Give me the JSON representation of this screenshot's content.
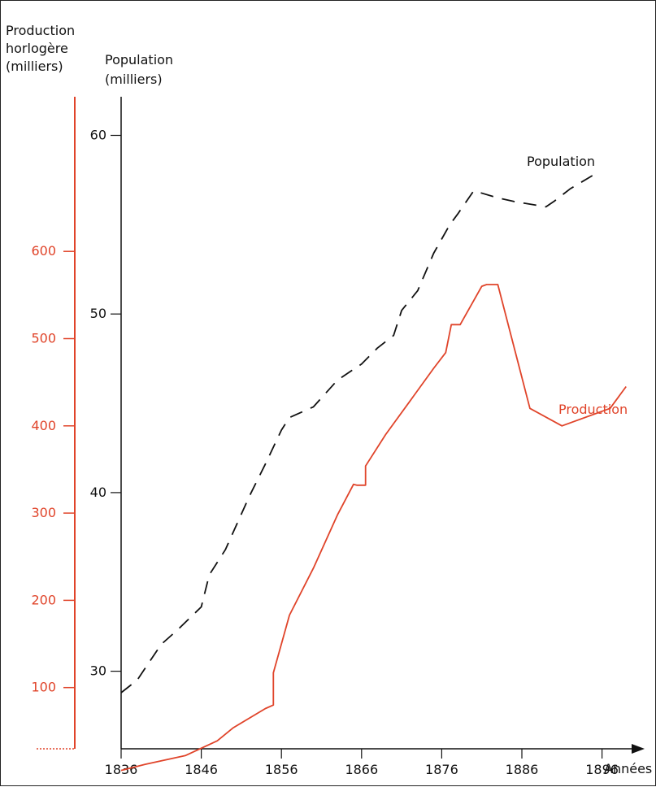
{
  "colors": {
    "production": "#e0442a",
    "population": "#111111",
    "axis": "#111111"
  },
  "axes": {
    "left_title": [
      "Production",
      "horlogère",
      "(milliers)"
    ],
    "right_title": [
      "Population",
      "(milliers)"
    ],
    "x_label": "Années"
  },
  "chart_data": {
    "type": "line",
    "x_label": "Années",
    "x_ticks": [
      1836,
      1846,
      1856,
      1866,
      1876,
      1886,
      1896
    ],
    "xlim": [
      1836,
      1902
    ],
    "y_left": {
      "label": "Production horlogère (milliers)",
      "ticks": [
        100,
        200,
        300,
        400,
        500,
        600
      ],
      "range": [
        0,
        700
      ]
    },
    "y_right": {
      "label": "Population (milliers)",
      "ticks": [
        30,
        40,
        50,
        60
      ],
      "range": [
        27,
        63
      ]
    },
    "series": [
      {
        "name": "Population",
        "axis": "right",
        "style": "dashed",
        "points": [
          [
            1836,
            28.8
          ],
          [
            1838,
            29.5
          ],
          [
            1841,
            31.5
          ],
          [
            1843,
            32.3
          ],
          [
            1846,
            33.6
          ],
          [
            1847,
            35.4
          ],
          [
            1849,
            36.8
          ],
          [
            1852,
            39.8
          ],
          [
            1854,
            41.6
          ],
          [
            1856,
            43.5
          ],
          [
            1857,
            44.2
          ],
          [
            1860,
            44.8
          ],
          [
            1863,
            46.3
          ],
          [
            1866,
            47.2
          ],
          [
            1868,
            48.1
          ],
          [
            1870,
            48.8
          ],
          [
            1871,
            50.2
          ],
          [
            1873,
            51.3
          ],
          [
            1875,
            53.4
          ],
          [
            1877,
            55.0
          ],
          [
            1878,
            55.6
          ],
          [
            1880,
            56.9
          ],
          [
            1883,
            56.5
          ],
          [
            1885,
            56.3
          ],
          [
            1889,
            56.0
          ],
          [
            1890,
            56.3
          ],
          [
            1892,
            57.0
          ],
          [
            1895,
            57.8
          ]
        ]
      },
      {
        "name": "Production",
        "axis": "left",
        "style": "solid",
        "points": [
          [
            1836,
            5
          ],
          [
            1839,
            12
          ],
          [
            1844,
            22
          ],
          [
            1848,
            39
          ],
          [
            1850,
            54
          ],
          [
            1854,
            76
          ],
          [
            1855,
            80
          ],
          [
            1855,
            117
          ],
          [
            1857,
            183
          ],
          [
            1860,
            237
          ],
          [
            1863,
            298
          ],
          [
            1865,
            333
          ],
          [
            1865.4,
            332
          ],
          [
            1866.5,
            332
          ],
          [
            1866.5,
            354
          ],
          [
            1869,
            390
          ],
          [
            1872,
            428
          ],
          [
            1875,
            466
          ],
          [
            1876.5,
            484
          ],
          [
            1877.2,
            516
          ],
          [
            1878.3,
            516
          ],
          [
            1881,
            560
          ],
          [
            1881.6,
            562
          ],
          [
            1883,
            562
          ],
          [
            1887,
            420
          ],
          [
            1891,
            400
          ],
          [
            1897,
            420
          ],
          [
            1899,
            445
          ]
        ]
      }
    ]
  }
}
